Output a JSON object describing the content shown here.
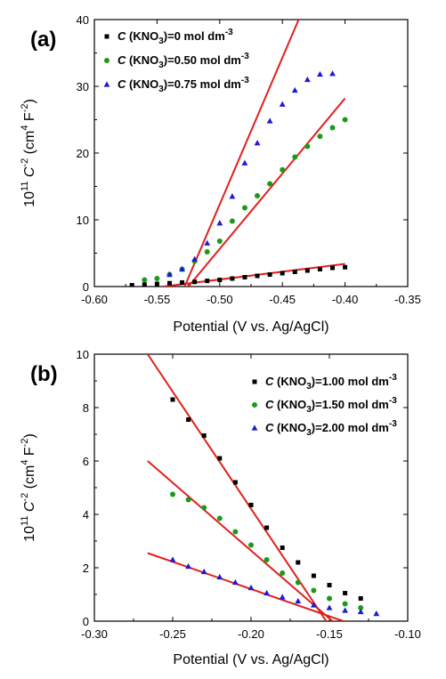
{
  "chart_data": [
    {
      "type": "scatter",
      "panel_label": "(a)",
      "xlabel": "Potential (V vs. Ag/AgCl)",
      "ylabel": {
        "prefix": "10",
        "prefix_sup": "11",
        "var": "C",
        "var_sup": "-2",
        "unit_open": " (cm",
        "unit_sup1": "4",
        "unit_mid": " F",
        "unit_sup2": "-2",
        "unit_close": ")"
      },
      "xlim": [
        -0.6,
        -0.35
      ],
      "ylim": [
        0,
        40
      ],
      "xticks": [
        -0.6,
        -0.55,
        -0.5,
        -0.45,
        -0.4,
        -0.35
      ],
      "xtick_labels": [
        "-0.60",
        "-0.55",
        "-0.50",
        "-0.45",
        "-0.40",
        "-0.35"
      ],
      "yticks": [
        0,
        10,
        20,
        30,
        40
      ],
      "ytick_labels": [
        "0",
        "10",
        "20",
        "30",
        "40"
      ],
      "legend_placement": "top-left",
      "series": [
        {
          "legend": {
            "var": "C",
            "text": " (KNO",
            "sub": "3",
            "rest": ")=0 mol dm",
            "sup": "-3"
          },
          "marker": "square",
          "color": "#000000",
          "x": [
            -0.57,
            -0.56,
            -0.55,
            -0.54,
            -0.53,
            -0.52,
            -0.51,
            -0.5,
            -0.49,
            -0.48,
            -0.47,
            -0.46,
            -0.45,
            -0.44,
            -0.43,
            -0.42,
            -0.41,
            -0.4
          ],
          "y": [
            0.2,
            0.3,
            0.4,
            0.5,
            0.6,
            0.7,
            0.85,
            1.0,
            1.2,
            1.4,
            1.6,
            1.8,
            2.0,
            2.2,
            2.4,
            2.6,
            2.8,
            2.9
          ],
          "fit": [
            [
              -0.545,
              0
            ],
            [
              -0.4,
              3.4
            ]
          ]
        },
        {
          "legend": {
            "var": "C",
            "text": " (KNO",
            "sub": "3",
            "rest": ")=0.50 mol dm",
            "sup": "-3"
          },
          "marker": "circle",
          "color": "#1a9a1a",
          "x": [
            -0.56,
            -0.55,
            -0.54,
            -0.53,
            -0.52,
            -0.51,
            -0.5,
            -0.49,
            -0.48,
            -0.47,
            -0.46,
            -0.45,
            -0.44,
            -0.43,
            -0.42,
            -0.41,
            -0.4
          ],
          "y": [
            1.0,
            1.2,
            1.8,
            2.6,
            3.8,
            5.2,
            6.8,
            9.8,
            11.8,
            13.6,
            15.4,
            17.5,
            19.4,
            21.0,
            22.5,
            23.8,
            25.0
          ],
          "fit": [
            [
              -0.525,
              0
            ],
            [
              -0.4,
              28.2
            ]
          ]
        },
        {
          "legend": {
            "var": "C",
            "text": " (KNO",
            "sub": "3",
            "rest": ")=0.75 mol dm",
            "sup": "-3"
          },
          "marker": "triangle",
          "color": "#1a1ad8",
          "x": [
            -0.54,
            -0.53,
            -0.52,
            -0.51,
            -0.5,
            -0.49,
            -0.48,
            -0.47,
            -0.46,
            -0.45,
            -0.44,
            -0.43,
            -0.42,
            -0.41
          ],
          "y": [
            1.8,
            2.6,
            4.1,
            6.5,
            9.5,
            13.5,
            18.5,
            21.5,
            24.8,
            27.3,
            29.4,
            31.0,
            31.8,
            31.9
          ],
          "fit": [
            [
              -0.528,
              0
            ],
            [
              -0.437,
              40
            ]
          ]
        }
      ]
    },
    {
      "type": "scatter",
      "panel_label": "(b)",
      "xlabel": "Potential (V vs. Ag/AgCl)",
      "ylabel": {
        "prefix": "10",
        "prefix_sup": "11",
        "var": "C",
        "var_sup": "-2",
        "unit_open": " (cm",
        "unit_sup1": "4",
        "unit_mid": " F",
        "unit_sup2": "-2",
        "unit_close": ")"
      },
      "xlim": [
        -0.3,
        -0.1
      ],
      "ylim": [
        0,
        10
      ],
      "xticks": [
        -0.3,
        -0.25,
        -0.2,
        -0.15,
        -0.1
      ],
      "xtick_labels": [
        "-0.30",
        "-0.25",
        "-0.20",
        "-0.15",
        "-0.10"
      ],
      "yticks": [
        0,
        2,
        4,
        6,
        8,
        10
      ],
      "ytick_labels": [
        "0",
        "2",
        "4",
        "6",
        "8",
        "10"
      ],
      "legend_placement": "top-right",
      "series": [
        {
          "legend": {
            "var": "C",
            "text": " (KNO",
            "sub": "3",
            "rest": ")=1.00 mol dm",
            "sup": "-3"
          },
          "marker": "square",
          "color": "#000000",
          "x": [
            -0.25,
            -0.24,
            -0.23,
            -0.22,
            -0.21,
            -0.2,
            -0.19,
            -0.18,
            -0.17,
            -0.16,
            -0.15,
            -0.14,
            -0.13
          ],
          "y": [
            8.3,
            7.55,
            6.95,
            6.1,
            5.2,
            4.35,
            3.5,
            2.75,
            2.2,
            1.7,
            1.35,
            1.05,
            0.85
          ],
          "fit": [
            [
              -0.266,
              10.0
            ],
            [
              -0.152,
              0
            ]
          ]
        },
        {
          "legend": {
            "var": "C",
            "text": " (KNO",
            "sub": "3",
            "rest": ")=1.50 mol dm",
            "sup": "-3"
          },
          "marker": "circle",
          "color": "#1a9a1a",
          "x": [
            -0.25,
            -0.24,
            -0.23,
            -0.22,
            -0.21,
            -0.2,
            -0.19,
            -0.18,
            -0.17,
            -0.16,
            -0.15,
            -0.14,
            -0.13
          ],
          "y": [
            4.75,
            4.55,
            4.25,
            3.85,
            3.35,
            2.85,
            2.3,
            1.8,
            1.45,
            1.15,
            0.85,
            0.65,
            0.5
          ],
          "fit": [
            [
              -0.266,
              6.0
            ],
            [
              -0.148,
              0
            ]
          ]
        },
        {
          "legend": {
            "var": "C",
            "text": " (KNO",
            "sub": "3",
            "rest": ")=2.00 mol dm",
            "sup": "-3"
          },
          "marker": "triangle",
          "color": "#1a1ad8",
          "x": [
            -0.25,
            -0.24,
            -0.23,
            -0.22,
            -0.21,
            -0.2,
            -0.19,
            -0.18,
            -0.17,
            -0.16,
            -0.15,
            -0.14,
            -0.13,
            -0.12
          ],
          "y": [
            2.3,
            2.05,
            1.85,
            1.65,
            1.45,
            1.25,
            1.05,
            0.9,
            0.75,
            0.6,
            0.5,
            0.4,
            0.35,
            0.28
          ],
          "fit": [
            [
              -0.266,
              2.55
            ],
            [
              -0.141,
              0
            ]
          ]
        }
      ]
    }
  ]
}
